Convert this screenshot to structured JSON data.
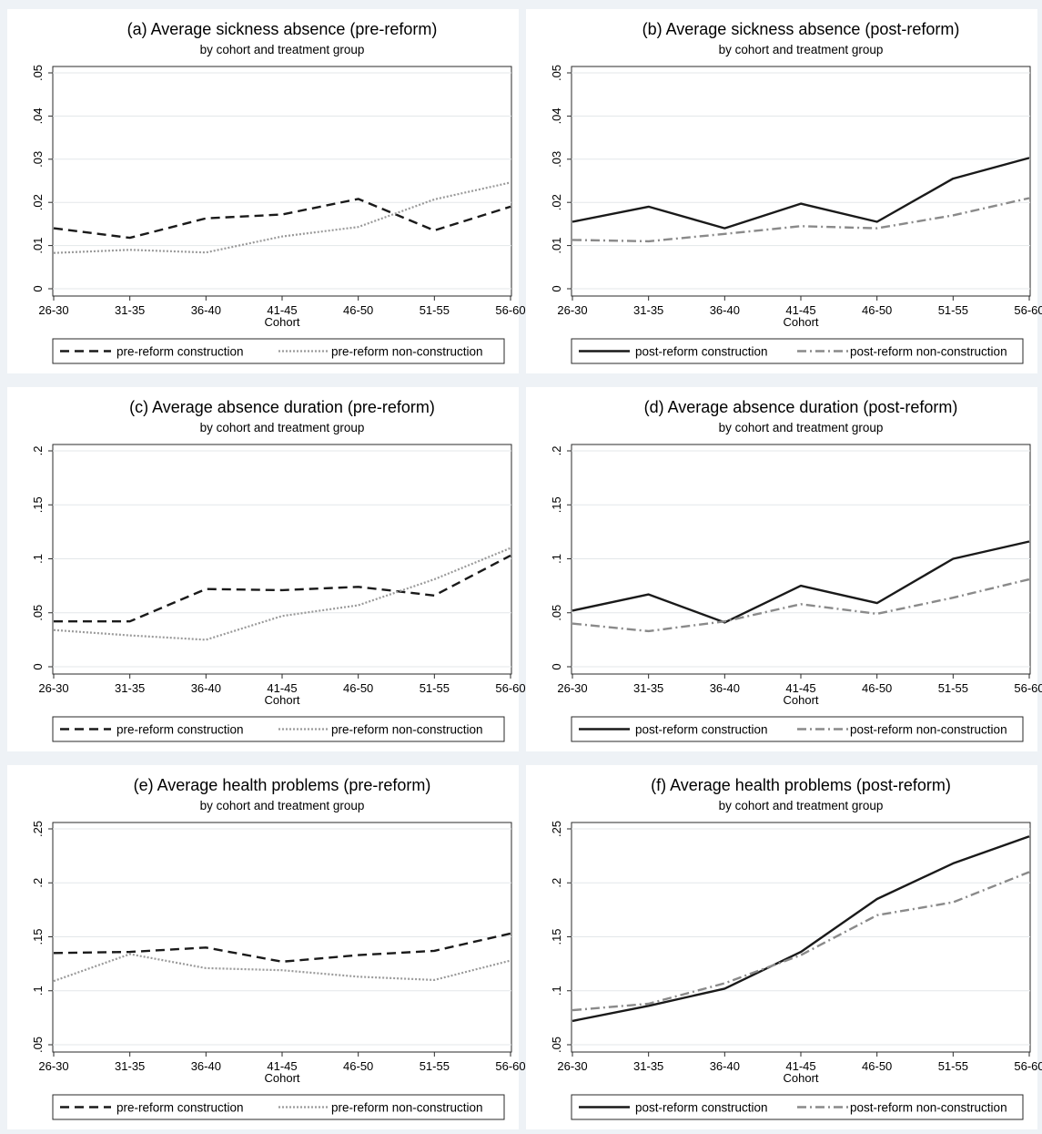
{
  "chart_data": [
    {
      "id": "a",
      "type": "line",
      "title": "(a) Average sickness absence (pre-reform)",
      "subtitle": "by cohort and treatment group",
      "xlabel": "Cohort",
      "ylabel": "",
      "categories": [
        "26-30",
        "31-35",
        "36-40",
        "41-45",
        "46-50",
        "51-55",
        "56-60"
      ],
      "ylim": [
        0,
        0.05
      ],
      "yticks": [
        0,
        0.01,
        0.02,
        0.03,
        0.04,
        0.05
      ],
      "ytick_labels": [
        "0",
        ".01",
        ".02",
        ".03",
        ".04",
        ".05"
      ],
      "grid": true,
      "legend_position": "bottom",
      "series": [
        {
          "name": "pre-reform construction",
          "style": "dash",
          "color": "#1a1a1a",
          "values": [
            0.014,
            0.0118,
            0.0163,
            0.0172,
            0.0208,
            0.0135,
            0.019
          ]
        },
        {
          "name": "pre-reform non-construction",
          "style": "dot",
          "color": "#9a9a9a",
          "values": [
            0.0083,
            0.009,
            0.0084,
            0.0121,
            0.0143,
            0.0207,
            0.0246
          ]
        }
      ]
    },
    {
      "id": "b",
      "type": "line",
      "title": "(b) Average sickness absence (post-reform)",
      "subtitle": "by cohort and treatment group",
      "xlabel": "Cohort",
      "ylabel": "",
      "categories": [
        "26-30",
        "31-35",
        "36-40",
        "41-45",
        "46-50",
        "51-55",
        "56-60"
      ],
      "ylim": [
        0,
        0.05
      ],
      "yticks": [
        0,
        0.01,
        0.02,
        0.03,
        0.04,
        0.05
      ],
      "ytick_labels": [
        "0",
        ".01",
        ".02",
        ".03",
        ".04",
        ".05"
      ],
      "grid": true,
      "legend_position": "bottom",
      "series": [
        {
          "name": "post-reform construction",
          "style": "solid",
          "color": "#1a1a1a",
          "values": [
            0.0155,
            0.019,
            0.014,
            0.0197,
            0.0155,
            0.0255,
            0.0303
          ]
        },
        {
          "name": "post-reform non-construction",
          "style": "dashdot",
          "color": "#8a8a8a",
          "values": [
            0.0113,
            0.011,
            0.0127,
            0.0145,
            0.014,
            0.017,
            0.021
          ]
        }
      ]
    },
    {
      "id": "c",
      "type": "line",
      "title": "(c) Average absence duration (pre-reform)",
      "subtitle": "by cohort and treatment group",
      "xlabel": "Cohort",
      "ylabel": "",
      "categories": [
        "26-30",
        "31-35",
        "36-40",
        "41-45",
        "46-50",
        "51-55",
        "56-60"
      ],
      "ylim": [
        0,
        0.2
      ],
      "yticks": [
        0,
        0.05,
        0.1,
        0.15,
        0.2
      ],
      "ytick_labels": [
        "0",
        ".05",
        ".1",
        ".15",
        ".2"
      ],
      "grid": true,
      "legend_position": "bottom",
      "series": [
        {
          "name": "pre-reform construction",
          "style": "dash",
          "color": "#1a1a1a",
          "values": [
            0.042,
            0.042,
            0.072,
            0.071,
            0.074,
            0.066,
            0.103
          ]
        },
        {
          "name": "pre-reform non-construction",
          "style": "dot",
          "color": "#9a9a9a",
          "values": [
            0.034,
            0.029,
            0.025,
            0.047,
            0.057,
            0.081,
            0.11
          ]
        }
      ]
    },
    {
      "id": "d",
      "type": "line",
      "title": "(d) Average absence duration (post-reform)",
      "subtitle": "by cohort and treatment group",
      "xlabel": "Cohort",
      "ylabel": "",
      "categories": [
        "26-30",
        "31-35",
        "36-40",
        "41-45",
        "46-50",
        "51-55",
        "56-60"
      ],
      "ylim": [
        0,
        0.2
      ],
      "yticks": [
        0,
        0.05,
        0.1,
        0.15,
        0.2
      ],
      "ytick_labels": [
        "0",
        ".05",
        ".1",
        ".15",
        ".2"
      ],
      "grid": true,
      "legend_position": "bottom",
      "series": [
        {
          "name": "post-reform construction",
          "style": "solid",
          "color": "#1a1a1a",
          "values": [
            0.052,
            0.067,
            0.041,
            0.075,
            0.059,
            0.1,
            0.116
          ]
        },
        {
          "name": "post-reform non-construction",
          "style": "dashdot",
          "color": "#8a8a8a",
          "values": [
            0.04,
            0.033,
            0.042,
            0.058,
            0.049,
            0.064,
            0.081
          ]
        }
      ]
    },
    {
      "id": "e",
      "type": "line",
      "title": "(e) Average health problems (pre-reform)",
      "subtitle": "by cohort and treatment group",
      "xlabel": "Cohort",
      "ylabel": "",
      "categories": [
        "26-30",
        "31-35",
        "36-40",
        "41-45",
        "46-50",
        "51-55",
        "56-60"
      ],
      "ylim": [
        0.05,
        0.25
      ],
      "yticks": [
        0.05,
        0.1,
        0.15,
        0.2,
        0.25
      ],
      "ytick_labels": [
        ".05",
        ".1",
        ".15",
        ".2",
        ".25"
      ],
      "grid": true,
      "legend_position": "bottom",
      "series": [
        {
          "name": "pre-reform construction",
          "style": "dash",
          "color": "#1a1a1a",
          "values": [
            0.135,
            0.136,
            0.14,
            0.127,
            0.133,
            0.137,
            0.153
          ]
        },
        {
          "name": "pre-reform non-construction",
          "style": "dot",
          "color": "#9a9a9a",
          "values": [
            0.109,
            0.134,
            0.121,
            0.119,
            0.113,
            0.11,
            0.128
          ]
        }
      ]
    },
    {
      "id": "f",
      "type": "line",
      "title": "(f) Average health problems (post-reform)",
      "subtitle": "by cohort and treatment group",
      "xlabel": "Cohort",
      "ylabel": "",
      "categories": [
        "26-30",
        "31-35",
        "36-40",
        "41-45",
        "46-50",
        "51-55",
        "56-60"
      ],
      "ylim": [
        0.05,
        0.25
      ],
      "yticks": [
        0.05,
        0.1,
        0.15,
        0.2,
        0.25
      ],
      "ytick_labels": [
        ".05",
        ".1",
        ".15",
        ".2",
        ".25"
      ],
      "grid": true,
      "legend_position": "bottom",
      "series": [
        {
          "name": "post-reform construction",
          "style": "solid",
          "color": "#1a1a1a",
          "values": [
            0.072,
            0.086,
            0.102,
            0.136,
            0.185,
            0.218,
            0.243
          ]
        },
        {
          "name": "post-reform non-construction",
          "style": "dashdot",
          "color": "#8a8a8a",
          "values": [
            0.082,
            0.088,
            0.107,
            0.133,
            0.17,
            0.182,
            0.21
          ]
        }
      ]
    }
  ]
}
